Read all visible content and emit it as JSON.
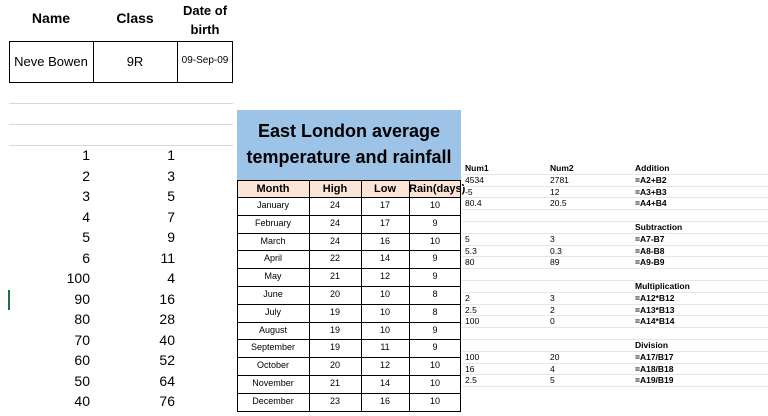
{
  "student": {
    "headers": {
      "name": "Name",
      "class": "Class",
      "dob": "Date of birth"
    },
    "values": {
      "name": "Neve Bowen",
      "class": "9R",
      "dob": "09-Sep-09"
    }
  },
  "number_columns": [
    [
      "1",
      "1"
    ],
    [
      "2",
      "3"
    ],
    [
      "3",
      "5"
    ],
    [
      "4",
      "7"
    ],
    [
      "5",
      "9"
    ],
    [
      "6",
      "11"
    ],
    [
      "100",
      "4"
    ],
    [
      "90",
      "16"
    ],
    [
      "80",
      "28"
    ],
    [
      "70",
      "40"
    ],
    [
      "60",
      "52"
    ],
    [
      "50",
      "64"
    ],
    [
      "40",
      "76"
    ]
  ],
  "weather": {
    "title_line1": "East London average",
    "title_line2": "temperature and rainfall",
    "headers": [
      "Month",
      "High",
      "Low",
      "Rain(days)"
    ],
    "rows": [
      [
        "January",
        "24",
        "17",
        "10"
      ],
      [
        "February",
        "24",
        "17",
        "9"
      ],
      [
        "March",
        "24",
        "16",
        "10"
      ],
      [
        "April",
        "22",
        "14",
        "9"
      ],
      [
        "May",
        "21",
        "12",
        "9"
      ],
      [
        "June",
        "20",
        "10",
        "8"
      ],
      [
        "July",
        "19",
        "10",
        "8"
      ],
      [
        "August",
        "19",
        "10",
        "9"
      ],
      [
        "September",
        "19",
        "11",
        "9"
      ],
      [
        "October",
        "20",
        "12",
        "10"
      ],
      [
        "November",
        "21",
        "14",
        "10"
      ],
      [
        "December",
        "23",
        "16",
        "10"
      ]
    ]
  },
  "formulas": {
    "headers": {
      "num1": "Num1",
      "num2": "Num2",
      "op": "Addition"
    },
    "sections": [
      {
        "title": null,
        "rows": [
          [
            "4534",
            "2781",
            "=A2+B2"
          ],
          [
            "-5",
            "12",
            "=A3+B3"
          ],
          [
            "80.4",
            "20.5",
            "=A4+B4"
          ]
        ]
      },
      {
        "title": "Subtraction",
        "rows": [
          [
            "5",
            "3",
            "=A7-B7"
          ],
          [
            "5.3",
            "0.3",
            "=A8-B8"
          ],
          [
            "80",
            "89",
            "=A9-B9"
          ]
        ]
      },
      {
        "title": "Multiplication",
        "rows": [
          [
            "2",
            "3",
            "=A12*B12"
          ],
          [
            "2.5",
            "2",
            "=A13*B13"
          ],
          [
            "100",
            "0",
            "=A14*B14"
          ]
        ]
      },
      {
        "title": "Division",
        "rows": [
          [
            "100",
            "20",
            "=A17/B17"
          ],
          [
            "16",
            "4",
            "=A18/B18"
          ],
          [
            "2.5",
            "5",
            "=A19/B19"
          ]
        ]
      }
    ]
  },
  "colors": {
    "title_bg": "#9dc3e6",
    "header_bg": "#fbe3d6",
    "grid": "#d9d9d9",
    "border": "#000000"
  }
}
